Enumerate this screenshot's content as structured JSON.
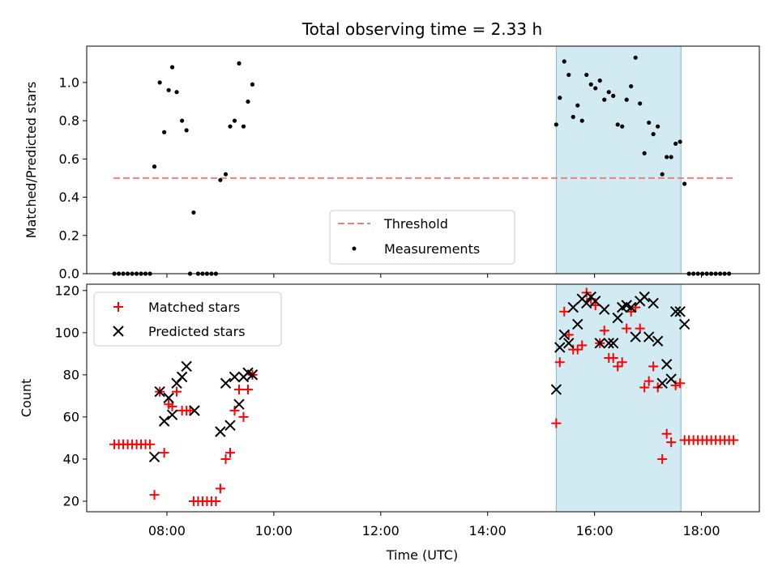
{
  "chart_data": {
    "type": "scatter",
    "title": "Total observing time = 2.33 h",
    "xlabel": "Time (UTC)",
    "x_unit": "hours UTC",
    "xlim": [
      "06:30",
      "19:05"
    ],
    "xticks": [
      "08:00",
      "10:00",
      "12:00",
      "14:00",
      "16:00",
      "18:00"
    ],
    "highlight_span": {
      "start": "15:17",
      "end": "17:37",
      "color": "#add8e6"
    },
    "panels": [
      {
        "name": "ratio",
        "ylabel": "Matched/Predicted stars",
        "ylim": [
          0,
          1.19
        ],
        "yticks": [
          "0.0",
          "0.2",
          "0.4",
          "0.6",
          "0.8",
          "1.0"
        ],
        "threshold": {
          "name": "Threshold",
          "value": 0.5,
          "x_range": [
            "07:00",
            "18:35"
          ],
          "color": "#f08080"
        },
        "legend_position": "lower-center",
        "series": [
          {
            "name": "Measurements",
            "marker": "dot",
            "color": "#000000",
            "points": [
              [
                "07:01",
                0
              ],
              [
                "07:06",
                0
              ],
              [
                "07:11",
                0
              ],
              [
                "07:16",
                0
              ],
              [
                "07:21",
                0
              ],
              [
                "07:26",
                0
              ],
              [
                "07:31",
                0
              ],
              [
                "07:36",
                0
              ],
              [
                "07:41",
                0
              ],
              [
                "07:46",
                0.56
              ],
              [
                "07:52",
                1.0
              ],
              [
                "07:57",
                0.74
              ],
              [
                "08:02",
                0.96
              ],
              [
                "08:06",
                1.08
              ],
              [
                "08:11",
                0.95
              ],
              [
                "08:17",
                0.8
              ],
              [
                "08:22",
                0.75
              ],
              [
                "08:26",
                0
              ],
              [
                "08:30",
                0.32
              ],
              [
                "08:35",
                0
              ],
              [
                "08:40",
                0
              ],
              [
                "08:45",
                0
              ],
              [
                "08:50",
                0
              ],
              [
                "08:55",
                0
              ],
              [
                "09:00",
                0.49
              ],
              [
                "09:06",
                0.52
              ],
              [
                "09:11",
                0.77
              ],
              [
                "09:16",
                0.8
              ],
              [
                "09:21",
                1.1
              ],
              [
                "09:26",
                0.77
              ],
              [
                "09:31",
                0.9
              ],
              [
                "09:36",
                0.99
              ],
              [
                "15:17",
                0.78
              ],
              [
                "15:21",
                0.92
              ],
              [
                "15:26",
                1.11
              ],
              [
                "15:31",
                1.04
              ],
              [
                "15:36",
                0.82
              ],
              [
                "15:41",
                0.88
              ],
              [
                "15:46",
                0.8
              ],
              [
                "15:51",
                1.04
              ],
              [
                "15:56",
                0.99
              ],
              [
                "16:01",
                0.97
              ],
              [
                "16:06",
                1.01
              ],
              [
                "16:11",
                0.91
              ],
              [
                "16:16",
                0.95
              ],
              [
                "16:21",
                0.93
              ],
              [
                "16:26",
                0.78
              ],
              [
                "16:31",
                0.77
              ],
              [
                "16:36",
                0.91
              ],
              [
                "16:41",
                0.98
              ],
              [
                "16:46",
                1.13
              ],
              [
                "16:51",
                0.89
              ],
              [
                "16:56",
                0.63
              ],
              [
                "17:01",
                0.79
              ],
              [
                "17:06",
                0.73
              ],
              [
                "17:11",
                0.77
              ],
              [
                "17:16",
                0.52
              ],
              [
                "17:21",
                0.61
              ],
              [
                "17:26",
                0.61
              ],
              [
                "17:31",
                0.68
              ],
              [
                "17:36",
                0.69
              ],
              [
                "17:41",
                0.47
              ],
              [
                "17:46",
                0
              ],
              [
                "17:51",
                0
              ],
              [
                "17:56",
                0
              ],
              [
                "18:01",
                0
              ],
              [
                "18:06",
                0
              ],
              [
                "18:11",
                0
              ],
              [
                "18:16",
                0
              ],
              [
                "18:21",
                0
              ],
              [
                "18:26",
                0
              ],
              [
                "18:31",
                0
              ]
            ]
          }
        ]
      },
      {
        "name": "counts",
        "ylabel": "Count",
        "ylim": [
          15,
          123
        ],
        "yticks": [
          "20",
          "40",
          "60",
          "80",
          "100",
          "120"
        ],
        "legend_position": "upper-left",
        "series": [
          {
            "name": "Matched stars",
            "marker": "plus",
            "color": "#ff0000",
            "points": [
              [
                "07:01",
                47
              ],
              [
                "07:06",
                47
              ],
              [
                "07:11",
                47
              ],
              [
                "07:16",
                47
              ],
              [
                "07:21",
                47
              ],
              [
                "07:26",
                47
              ],
              [
                "07:31",
                47
              ],
              [
                "07:36",
                47
              ],
              [
                "07:41",
                47
              ],
              [
                "07:46",
                23
              ],
              [
                "07:52",
                72
              ],
              [
                "07:57",
                43
              ],
              [
                "08:02",
                66
              ],
              [
                "08:06",
                65
              ],
              [
                "08:11",
                72
              ],
              [
                "08:17",
                63
              ],
              [
                "08:22",
                63
              ],
              [
                "08:26",
                63
              ],
              [
                "08:30",
                20
              ],
              [
                "08:35",
                20
              ],
              [
                "08:40",
                20
              ],
              [
                "08:45",
                20
              ],
              [
                "08:50",
                20
              ],
              [
                "08:55",
                20
              ],
              [
                "09:00",
                26
              ],
              [
                "09:06",
                40
              ],
              [
                "09:11",
                43
              ],
              [
                "09:16",
                63
              ],
              [
                "09:21",
                73
              ],
              [
                "09:26",
                60
              ],
              [
                "09:31",
                73
              ],
              [
                "09:36",
                80
              ],
              [
                "15:17",
                57
              ],
              [
                "15:21",
                86
              ],
              [
                "15:26",
                110
              ],
              [
                "15:31",
                99
              ],
              [
                "15:36",
                92
              ],
              [
                "15:41",
                92
              ],
              [
                "15:46",
                94
              ],
              [
                "15:51",
                119
              ],
              [
                "15:56",
                116
              ],
              [
                "16:01",
                113
              ],
              [
                "16:06",
                95
              ],
              [
                "16:11",
                101
              ],
              [
                "16:16",
                88
              ],
              [
                "16:21",
                88
              ],
              [
                "16:26",
                84
              ],
              [
                "16:31",
                86
              ],
              [
                "16:36",
                102
              ],
              [
                "16:41",
                110
              ],
              [
                "16:46",
                112
              ],
              [
                "16:51",
                102
              ],
              [
                "16:56",
                74
              ],
              [
                "17:01",
                77
              ],
              [
                "17:06",
                84
              ],
              [
                "17:11",
                74
              ],
              [
                "17:16",
                40
              ],
              [
                "17:21",
                52
              ],
              [
                "17:26",
                48
              ],
              [
                "17:31",
                75
              ],
              [
                "17:36",
                76
              ],
              [
                "17:41",
                49
              ],
              [
                "17:46",
                49
              ],
              [
                "17:51",
                49
              ],
              [
                "17:56",
                49
              ],
              [
                "18:01",
                49
              ],
              [
                "18:06",
                49
              ],
              [
                "18:11",
                49
              ],
              [
                "18:16",
                49
              ],
              [
                "18:21",
                49
              ],
              [
                "18:26",
                49
              ],
              [
                "18:31",
                49
              ],
              [
                "18:36",
                49
              ]
            ]
          },
          {
            "name": "Predicted stars",
            "marker": "x",
            "color": "#000000",
            "points": [
              [
                "07:46",
                41
              ],
              [
                "07:52",
                72
              ],
              [
                "07:57",
                58
              ],
              [
                "08:02",
                69
              ],
              [
                "08:06",
                61
              ],
              [
                "08:11",
                76
              ],
              [
                "08:17",
                79
              ],
              [
                "08:22",
                84
              ],
              [
                "08:31",
                63
              ],
              [
                "09:00",
                53
              ],
              [
                "09:06",
                76
              ],
              [
                "09:11",
                56
              ],
              [
                "09:16",
                79
              ],
              [
                "09:21",
                66
              ],
              [
                "09:26",
                79
              ],
              [
                "09:31",
                81
              ],
              [
                "09:36",
                80
              ],
              [
                "15:17",
                73
              ],
              [
                "15:21",
                93
              ],
              [
                "15:26",
                99
              ],
              [
                "15:31",
                95
              ],
              [
                "15:36",
                112
              ],
              [
                "15:41",
                104
              ],
              [
                "15:46",
                116
              ],
              [
                "15:51",
                114
              ],
              [
                "15:56",
                117
              ],
              [
                "16:01",
                115
              ],
              [
                "16:06",
                95
              ],
              [
                "16:11",
                111
              ],
              [
                "16:16",
                95
              ],
              [
                "16:21",
                95
              ],
              [
                "16:26",
                107
              ],
              [
                "16:31",
                112
              ],
              [
                "16:36",
                113
              ],
              [
                "16:41",
                112
              ],
              [
                "16:46",
                98
              ],
              [
                "16:51",
                115
              ],
              [
                "16:56",
                117
              ],
              [
                "17:01",
                98
              ],
              [
                "17:06",
                114
              ],
              [
                "17:11",
                96
              ],
              [
                "17:16",
                76
              ],
              [
                "17:21",
                85
              ],
              [
                "17:26",
                78
              ],
              [
                "17:31",
                110
              ],
              [
                "17:36",
                110
              ],
              [
                "17:41",
                104
              ]
            ]
          }
        ]
      }
    ]
  }
}
